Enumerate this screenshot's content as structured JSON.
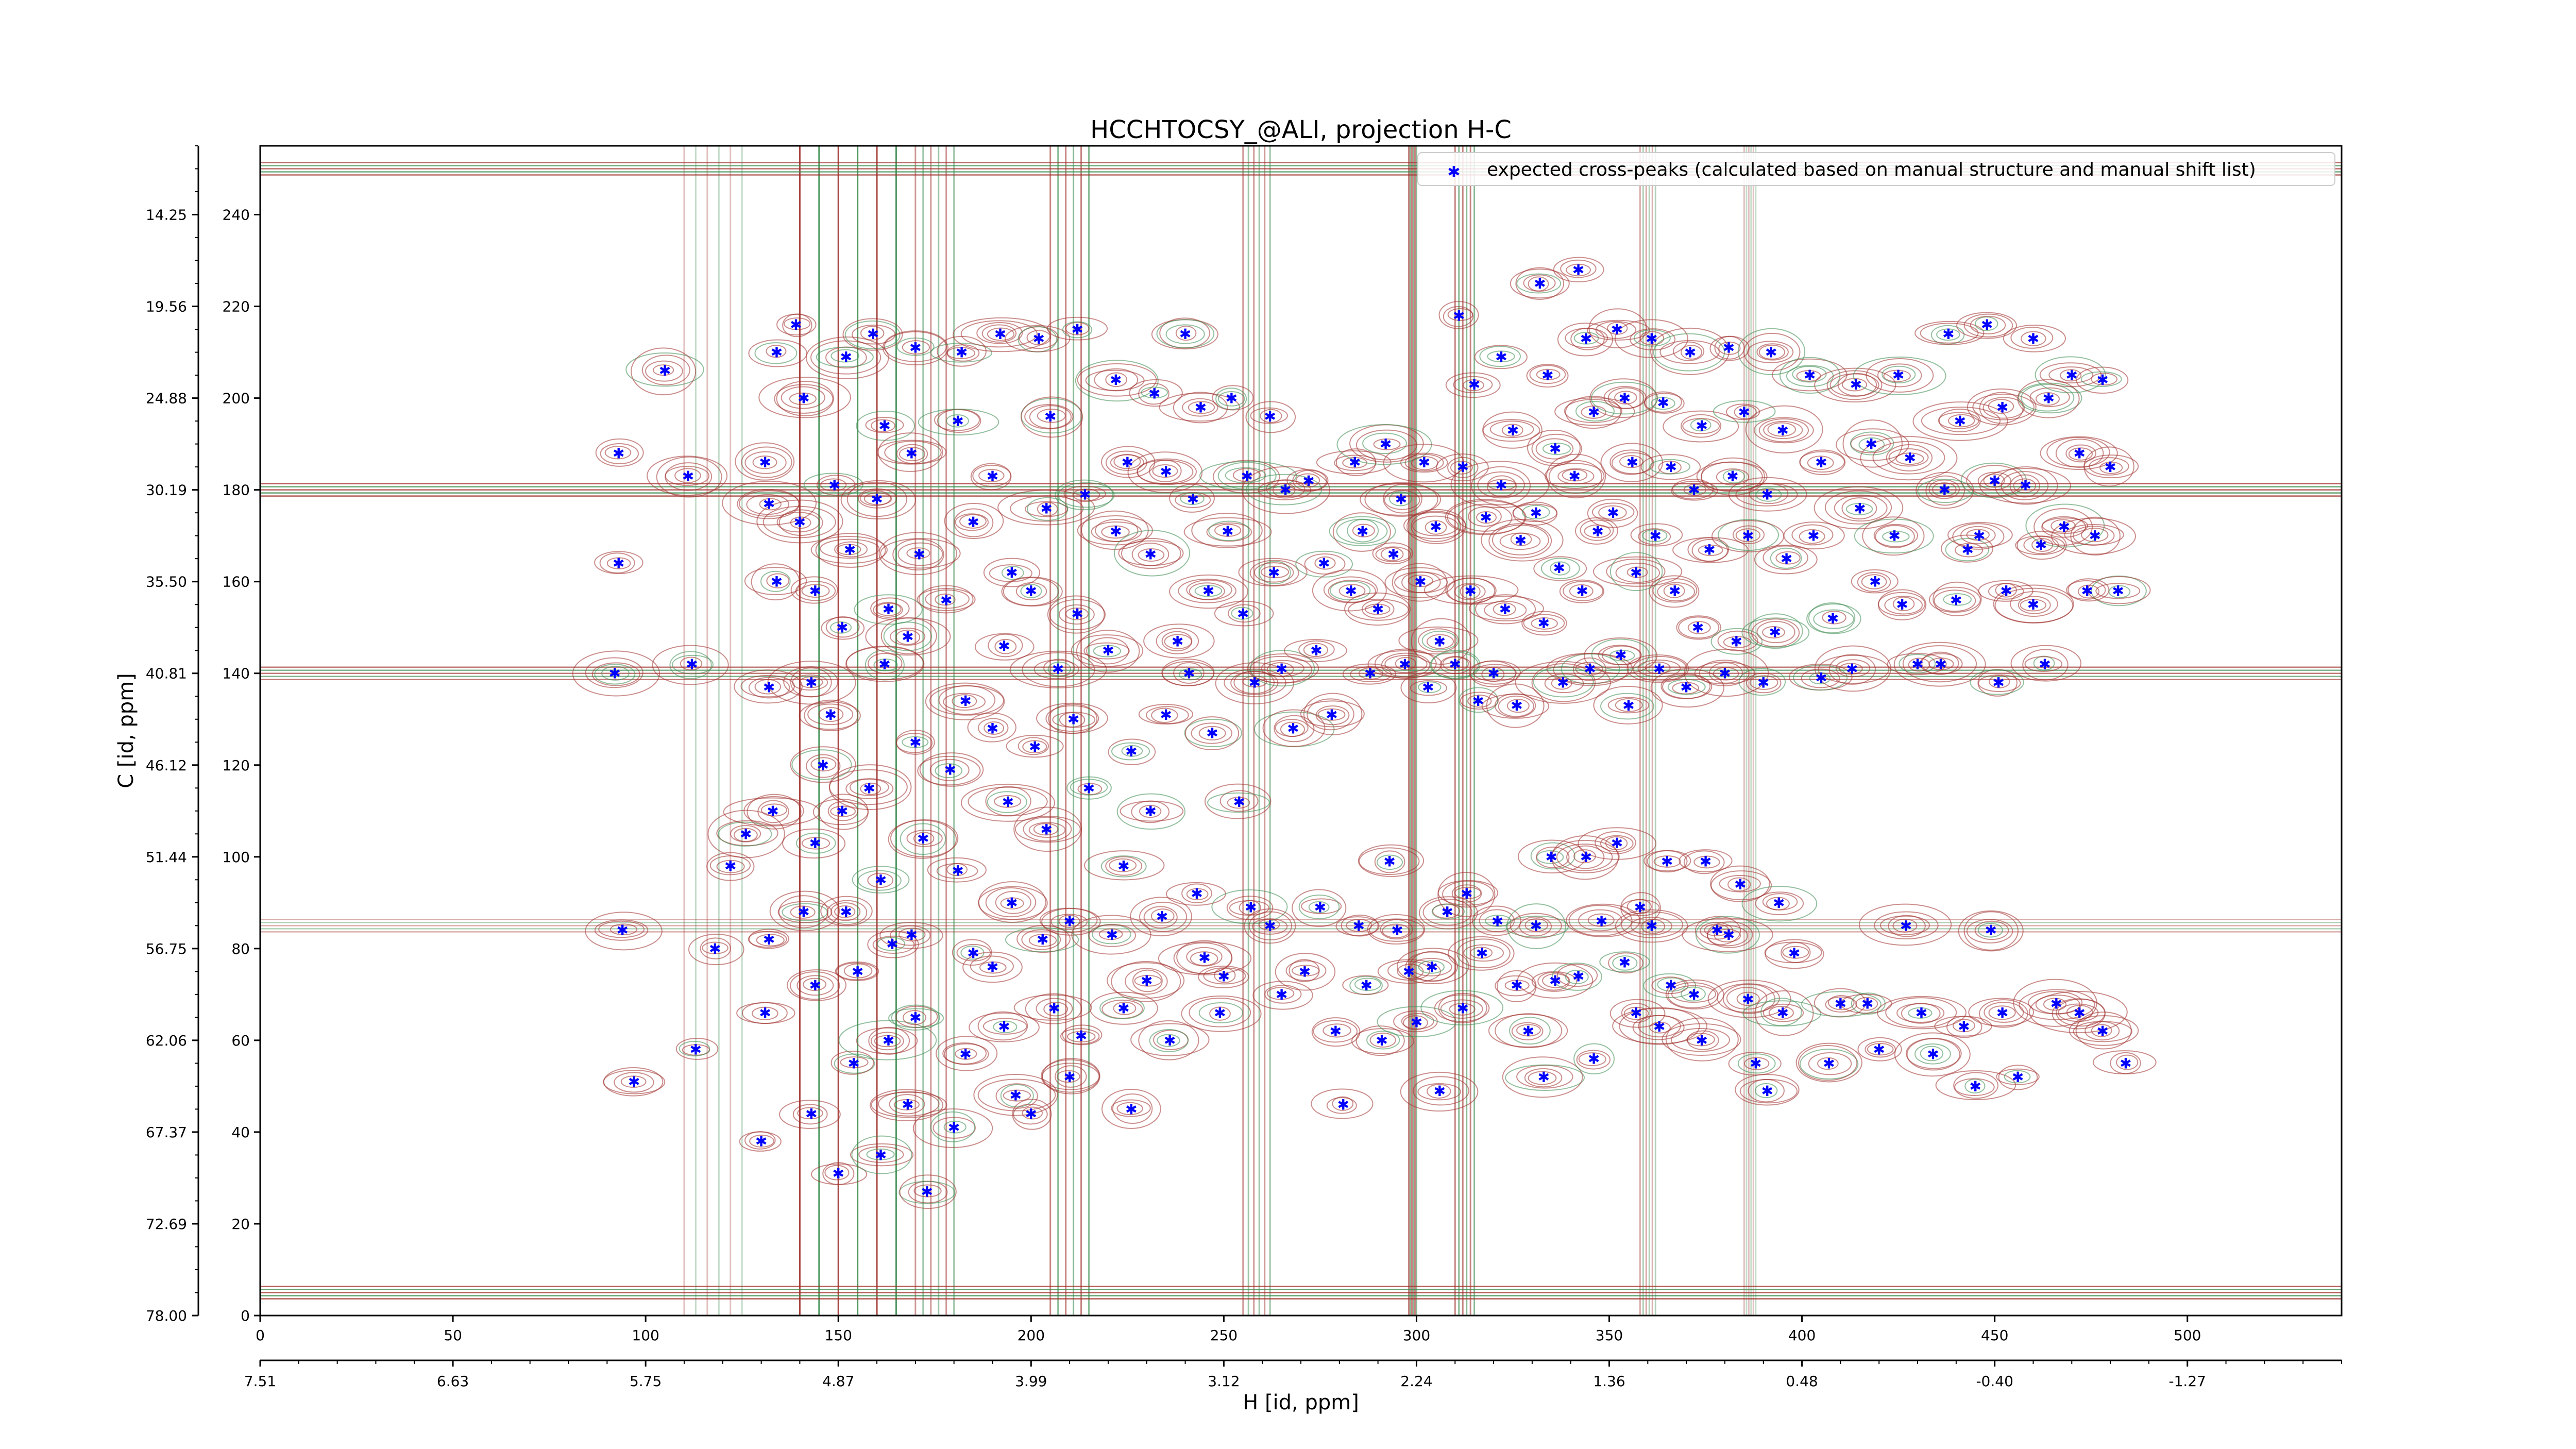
{
  "chart_data": {
    "type": "scatter",
    "title": "HCCHTOCSY_@ALI, projection H-C",
    "xlabel": "H [id, ppm]",
    "ylabel": "C [id, ppm]",
    "x_index_ticks": [
      "0",
      "50",
      "100",
      "150",
      "200",
      "250",
      "300",
      "350",
      "400",
      "450",
      "500"
    ],
    "x_ppm_ticks": [
      "7.51",
      "6.63",
      "5.75",
      "4.87",
      "3.99",
      "3.12",
      "2.24",
      "1.36",
      "0.48",
      "-0.40",
      "-1.27"
    ],
    "y_index_ticks": [
      "0",
      "20",
      "40",
      "60",
      "80",
      "100",
      "120",
      "140",
      "160",
      "180",
      "200",
      "220",
      "240"
    ],
    "y_ppm_ticks": [
      "78.00",
      "72.69",
      "67.37",
      "62.06",
      "56.75",
      "51.44",
      "46.12",
      "40.81",
      "35.50",
      "30.19",
      "24.88",
      "19.56",
      "14.25"
    ],
    "xlim": [
      0,
      540
    ],
    "ylim": [
      0,
      255
    ],
    "legend": {
      "position": "top-right"
    },
    "colors": {
      "peaks": "#0000ff",
      "contour_positive": "#a0322d",
      "contour_negative": "#3c8c50",
      "axes": "#000000"
    },
    "series": [
      {
        "name": "expected cross-peaks (calculated based on manual structure and manual shift list)",
        "points": [
          [
            93,
            188
          ],
          [
            92,
            140
          ],
          [
            93,
            164
          ],
          [
            97,
            51
          ],
          [
            94,
            84
          ],
          [
            105,
            206
          ],
          [
            112,
            142
          ],
          [
            111,
            183
          ],
          [
            122,
            98
          ],
          [
            118,
            80
          ],
          [
            113,
            58
          ],
          [
            126,
            105
          ],
          [
            134,
            210
          ],
          [
            131,
            186
          ],
          [
            132,
            177
          ],
          [
            134,
            160
          ],
          [
            132,
            137
          ],
          [
            133,
            110
          ],
          [
            132,
            82
          ],
          [
            131,
            66
          ],
          [
            130,
            38
          ],
          [
            139,
            216
          ],
          [
            141,
            200
          ],
          [
            140,
            173
          ],
          [
            144,
            158
          ],
          [
            143,
            138
          ],
          [
            146,
            120
          ],
          [
            144,
            103
          ],
          [
            141,
            88
          ],
          [
            144,
            72
          ],
          [
            143,
            44
          ],
          [
            152,
            209
          ],
          [
            149,
            181
          ],
          [
            153,
            167
          ],
          [
            151,
            150
          ],
          [
            148,
            131
          ],
          [
            151,
            110
          ],
          [
            152,
            88
          ],
          [
            155,
            75
          ],
          [
            154,
            55
          ],
          [
            150,
            31
          ],
          [
            159,
            214
          ],
          [
            162,
            194
          ],
          [
            160,
            178
          ],
          [
            163,
            154
          ],
          [
            162,
            142
          ],
          [
            158,
            115
          ],
          [
            161,
            95
          ],
          [
            164,
            81
          ],
          [
            163,
            60
          ],
          [
            161,
            35
          ],
          [
            170,
            211
          ],
          [
            169,
            188
          ],
          [
            171,
            166
          ],
          [
            168,
            148
          ],
          [
            170,
            125
          ],
          [
            172,
            104
          ],
          [
            169,
            83
          ],
          [
            170,
            65
          ],
          [
            168,
            46
          ],
          [
            173,
            27
          ],
          [
            182,
            210
          ],
          [
            181,
            195
          ],
          [
            185,
            173
          ],
          [
            178,
            156
          ],
          [
            183,
            134
          ],
          [
            179,
            119
          ],
          [
            181,
            97
          ],
          [
            185,
            79
          ],
          [
            183,
            57
          ],
          [
            180,
            41
          ],
          [
            192,
            214
          ],
          [
            190,
            183
          ],
          [
            195,
            162
          ],
          [
            193,
            146
          ],
          [
            190,
            128
          ],
          [
            194,
            112
          ],
          [
            195,
            90
          ],
          [
            190,
            76
          ],
          [
            193,
            63
          ],
          [
            196,
            48
          ],
          [
            202,
            213
          ],
          [
            205,
            196
          ],
          [
            204,
            176
          ],
          [
            200,
            158
          ],
          [
            207,
            141
          ],
          [
            201,
            124
          ],
          [
            204,
            106
          ],
          [
            203,
            82
          ],
          [
            206,
            67
          ],
          [
            200,
            44
          ],
          [
            212,
            215
          ],
          [
            214,
            179
          ],
          [
            212,
            153
          ],
          [
            211,
            130
          ],
          [
            215,
            115
          ],
          [
            210,
            86
          ],
          [
            213,
            61
          ],
          [
            210,
            52
          ],
          [
            222,
            204
          ],
          [
            225,
            186
          ],
          [
            222,
            171
          ],
          [
            220,
            145
          ],
          [
            226,
            123
          ],
          [
            224,
            98
          ],
          [
            221,
            83
          ],
          [
            224,
            67
          ],
          [
            226,
            45
          ],
          [
            232,
            201
          ],
          [
            235,
            184
          ],
          [
            231,
            166
          ],
          [
            238,
            147
          ],
          [
            235,
            131
          ],
          [
            231,
            110
          ],
          [
            234,
            87
          ],
          [
            230,
            73
          ],
          [
            236,
            60
          ],
          [
            240,
            214
          ],
          [
            244,
            198
          ],
          [
            242,
            178
          ],
          [
            246,
            158
          ],
          [
            241,
            140
          ],
          [
            247,
            127
          ],
          [
            243,
            92
          ],
          [
            245,
            78
          ],
          [
            249,
            66
          ],
          [
            252,
            200
          ],
          [
            256,
            183
          ],
          [
            251,
            171
          ],
          [
            255,
            153
          ],
          [
            258,
            138
          ],
          [
            254,
            112
          ],
          [
            257,
            89
          ],
          [
            250,
            74
          ],
          [
            262,
            196
          ],
          [
            266,
            180
          ],
          [
            263,
            162
          ],
          [
            265,
            141
          ],
          [
            268,
            128
          ],
          [
            262,
            85
          ],
          [
            265,
            70
          ],
          [
            272,
            182
          ],
          [
            276,
            164
          ],
          [
            274,
            145
          ],
          [
            278,
            131
          ],
          [
            275,
            89
          ],
          [
            271,
            75
          ],
          [
            279,
            62
          ],
          [
            284,
            186
          ],
          [
            286,
            171
          ],
          [
            283,
            158
          ],
          [
            288,
            140
          ],
          [
            285,
            85
          ],
          [
            287,
            72
          ],
          [
            281,
            46
          ],
          [
            292,
            190
          ],
          [
            296,
            178
          ],
          [
            294,
            166
          ],
          [
            290,
            154
          ],
          [
            297,
            142
          ],
          [
            293,
            99
          ],
          [
            295,
            84
          ],
          [
            298,
            75
          ],
          [
            291,
            60
          ],
          [
            302,
            186
          ],
          [
            305,
            172
          ],
          [
            301,
            160
          ],
          [
            306,
            147
          ],
          [
            303,
            137
          ],
          [
            308,
            88
          ],
          [
            304,
            76
          ],
          [
            300,
            64
          ],
          [
            306,
            49
          ],
          [
            311,
            218
          ],
          [
            315,
            203
          ],
          [
            312,
            185
          ],
          [
            318,
            174
          ],
          [
            314,
            158
          ],
          [
            310,
            142
          ],
          [
            316,
            134
          ],
          [
            313,
            92
          ],
          [
            317,
            79
          ],
          [
            312,
            67
          ],
          [
            322,
            209
          ],
          [
            325,
            193
          ],
          [
            322,
            181
          ],
          [
            327,
            169
          ],
          [
            323,
            154
          ],
          [
            320,
            140
          ],
          [
            326,
            133
          ],
          [
            321,
            86
          ],
          [
            326,
            72
          ],
          [
            329,
            62
          ],
          [
            332,
            225
          ],
          [
            334,
            205
          ],
          [
            336,
            189
          ],
          [
            331,
            175
          ],
          [
            337,
            163
          ],
          [
            333,
            151
          ],
          [
            338,
            138
          ],
          [
            335,
            100
          ],
          [
            331,
            85
          ],
          [
            336,
            73
          ],
          [
            333,
            52
          ],
          [
            342,
            228
          ],
          [
            344,
            213
          ],
          [
            346,
            197
          ],
          [
            341,
            183
          ],
          [
            347,
            171
          ],
          [
            343,
            158
          ],
          [
            345,
            141
          ],
          [
            344,
            100
          ],
          [
            348,
            86
          ],
          [
            342,
            74
          ],
          [
            346,
            56
          ],
          [
            352,
            215
          ],
          [
            354,
            200
          ],
          [
            356,
            186
          ],
          [
            351,
            175
          ],
          [
            357,
            162
          ],
          [
            353,
            144
          ],
          [
            355,
            133
          ],
          [
            352,
            103
          ],
          [
            358,
            89
          ],
          [
            354,
            77
          ],
          [
            357,
            66
          ],
          [
            361,
            213
          ],
          [
            364,
            199
          ],
          [
            366,
            185
          ],
          [
            362,
            170
          ],
          [
            367,
            158
          ],
          [
            363,
            141
          ],
          [
            365,
            99
          ],
          [
            361,
            85
          ],
          [
            366,
            72
          ],
          [
            363,
            63
          ],
          [
            371,
            210
          ],
          [
            374,
            194
          ],
          [
            372,
            180
          ],
          [
            376,
            167
          ],
          [
            373,
            150
          ],
          [
            370,
            137
          ],
          [
            375,
            99
          ],
          [
            378,
            84
          ],
          [
            372,
            70
          ],
          [
            374,
            60
          ],
          [
            381,
            211
          ],
          [
            385,
            197
          ],
          [
            382,
            183
          ],
          [
            386,
            170
          ],
          [
            383,
            147
          ],
          [
            380,
            140
          ],
          [
            384,
            94
          ],
          [
            381,
            83
          ],
          [
            386,
            69
          ],
          [
            388,
            55
          ],
          [
            392,
            210
          ],
          [
            395,
            193
          ],
          [
            391,
            179
          ],
          [
            396,
            165
          ],
          [
            393,
            149
          ],
          [
            390,
            138
          ],
          [
            394,
            90
          ],
          [
            398,
            79
          ],
          [
            395,
            66
          ],
          [
            391,
            49
          ],
          [
            402,
            205
          ],
          [
            405,
            186
          ],
          [
            403,
            170
          ],
          [
            408,
            152
          ],
          [
            405,
            139
          ],
          [
            410,
            68
          ],
          [
            407,
            55
          ],
          [
            414,
            203
          ],
          [
            418,
            190
          ],
          [
            415,
            176
          ],
          [
            419,
            160
          ],
          [
            413,
            141
          ],
          [
            417,
            68
          ],
          [
            420,
            58
          ],
          [
            425,
            205
          ],
          [
            428,
            187
          ],
          [
            424,
            170
          ],
          [
            426,
            155
          ],
          [
            430,
            142
          ],
          [
            427,
            85
          ],
          [
            431,
            66
          ],
          [
            434,
            57
          ],
          [
            438,
            214
          ],
          [
            441,
            195
          ],
          [
            437,
            180
          ],
          [
            443,
            167
          ],
          [
            440,
            156
          ],
          [
            436,
            142
          ],
          [
            442,
            63
          ],
          [
            445,
            50
          ],
          [
            448,
            216
          ],
          [
            452,
            198
          ],
          [
            450,
            182
          ],
          [
            446,
            170
          ],
          [
            453,
            158
          ],
          [
            451,
            138
          ],
          [
            449,
            84
          ],
          [
            452,
            66
          ],
          [
            456,
            52
          ],
          [
            460,
            213
          ],
          [
            464,
            200
          ],
          [
            458,
            181
          ],
          [
            462,
            168
          ],
          [
            460,
            155
          ],
          [
            463,
            142
          ],
          [
            466,
            68
          ],
          [
            470,
            205
          ],
          [
            472,
            188
          ],
          [
            468,
            172
          ],
          [
            474,
            158
          ],
          [
            472,
            66
          ],
          [
            478,
            204
          ],
          [
            480,
            185
          ],
          [
            476,
            170
          ],
          [
            482,
            158
          ],
          [
            478,
            62
          ],
          [
            484,
            55
          ]
        ]
      }
    ]
  }
}
